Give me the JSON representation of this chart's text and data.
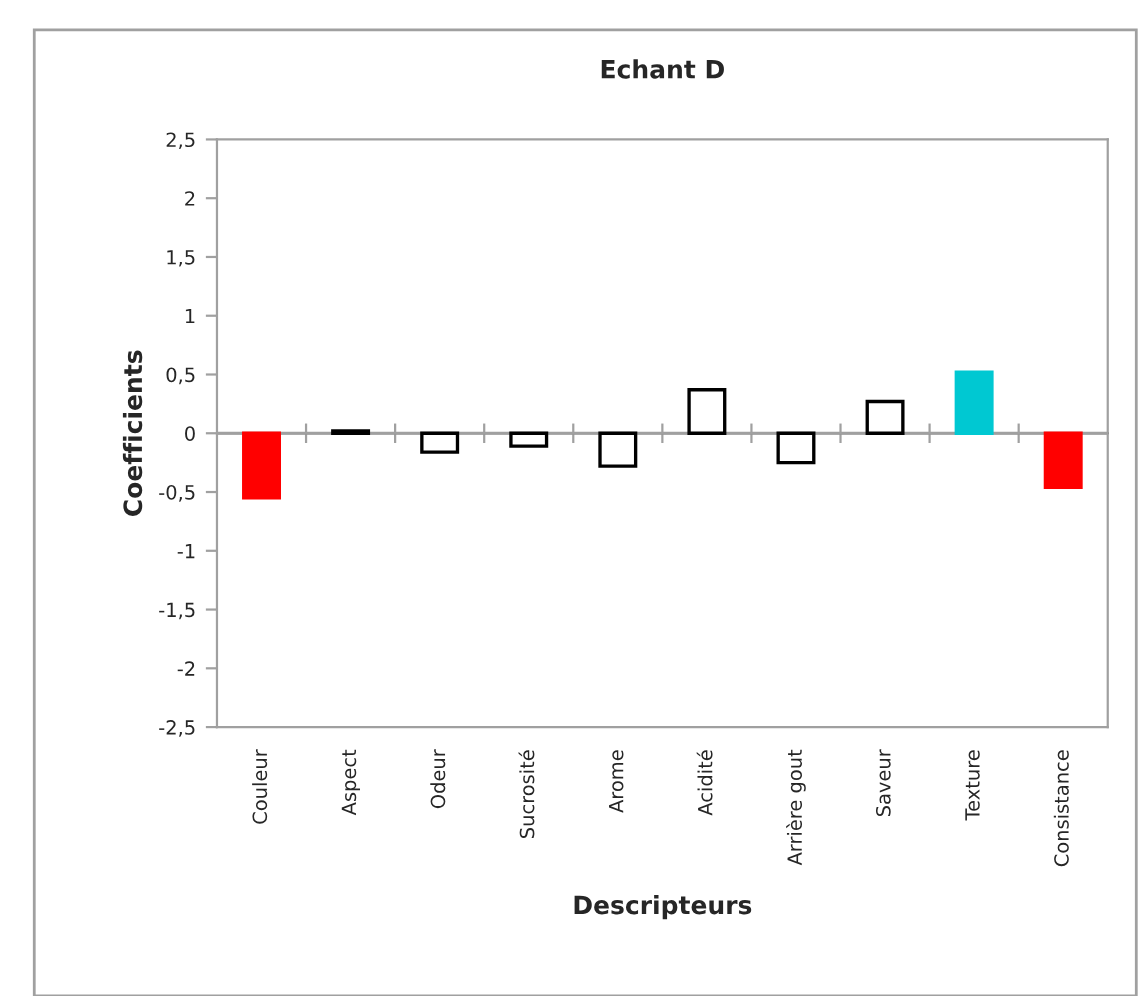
{
  "chart_data": {
    "type": "bar",
    "title": "Echant D",
    "xlabel": "Descripteurs",
    "ylabel": "Coefficients",
    "categories": [
      "Couleur",
      "Aspect",
      "Odeur",
      "Sucrosité",
      "Arome",
      "Acidité",
      "Arrière gout",
      "Saveur",
      "Texture",
      "Consistance"
    ],
    "values": [
      -0.55,
      0.02,
      -0.16,
      -0.11,
      -0.28,
      0.37,
      -0.25,
      0.27,
      0.52,
      -0.46
    ],
    "colors": [
      "#ff0000",
      "#ffffff",
      "#ffffff",
      "#ffffff",
      "#ffffff",
      "#ffffff",
      "#ffffff",
      "#ffffff",
      "#00c8d2",
      "#ff0000"
    ],
    "ylim": [
      -2.5,
      2.5
    ],
    "yticks": [
      {
        "value": -2.5,
        "label": "-2,5"
      },
      -2,
      {
        "value": -1.5,
        "label": "-1,5"
      },
      -1,
      {
        "value": -0.5,
        "label": "-0,5"
      },
      0,
      {
        "value": 0.5,
        "label": "0,5"
      },
      1,
      {
        "value": 1.5,
        "label": "1,5"
      },
      2,
      {
        "value": 2.5,
        "label": "2,5"
      }
    ],
    "ref_lines": [
      {
        "axis": "y",
        "value": 0,
        "color": "#a0a0a0"
      }
    ],
    "grid": false,
    "legend": false
  }
}
